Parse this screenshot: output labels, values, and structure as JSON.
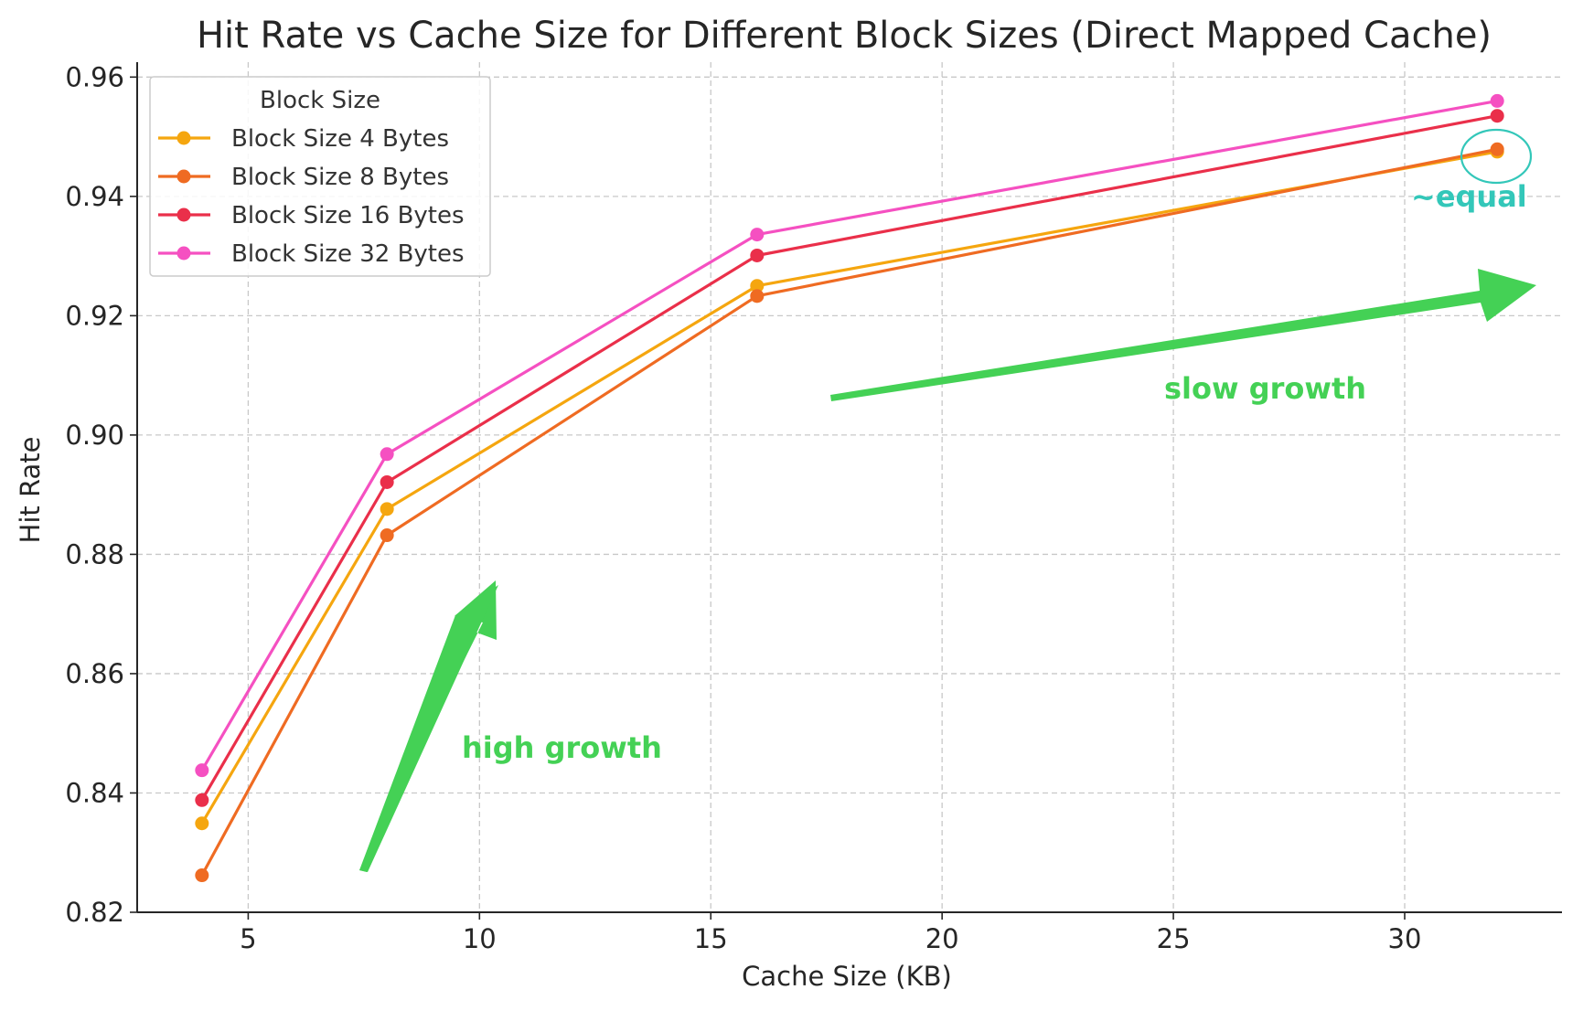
{
  "chart_data": {
    "type": "line",
    "title": "Hit Rate vs Cache Size for Different Block Sizes (Direct Mapped Cache)",
    "xlabel": "Cache Size (KB)",
    "ylabel": "Hit Rate",
    "xlim": [
      2.6,
      33.4
    ],
    "ylim": [
      0.82,
      0.9625
    ],
    "xticks": [
      5,
      10,
      15,
      20,
      25,
      30
    ],
    "yticks": [
      0.82,
      0.84,
      0.86,
      0.88,
      0.9,
      0.92,
      0.94,
      0.96
    ],
    "xtick_labels": [
      "5",
      "10",
      "15",
      "20",
      "25",
      "30"
    ],
    "ytick_labels": [
      "0.82",
      "0.84",
      "0.86",
      "0.88",
      "0.90",
      "0.92",
      "0.94",
      "0.96"
    ],
    "grid": true,
    "x": [
      4,
      8,
      16,
      32
    ],
    "series": [
      {
        "name": "Block Size 4 Bytes",
        "values": [
          0.8349,
          0.8876,
          0.925,
          0.9475
        ],
        "color": "#f5a60f"
      },
      {
        "name": "Block Size 8 Bytes",
        "values": [
          0.8262,
          0.8832,
          0.9233,
          0.9479
        ],
        "color": "#ef6b22"
      },
      {
        "name": "Block Size 16 Bytes",
        "values": [
          0.8388,
          0.8921,
          0.9301,
          0.9535
        ],
        "color": "#ea2f4a"
      },
      {
        "name": "Block Size 32 Bytes",
        "values": [
          0.8438,
          0.8968,
          0.9336,
          0.956
        ],
        "color": "#f550c1"
      }
    ],
    "legend": {
      "title": "Block Size",
      "position": "top-left"
    },
    "annotations": {
      "high_growth": "high growth",
      "slow_growth": "slow growth",
      "equal": "~equal"
    }
  }
}
